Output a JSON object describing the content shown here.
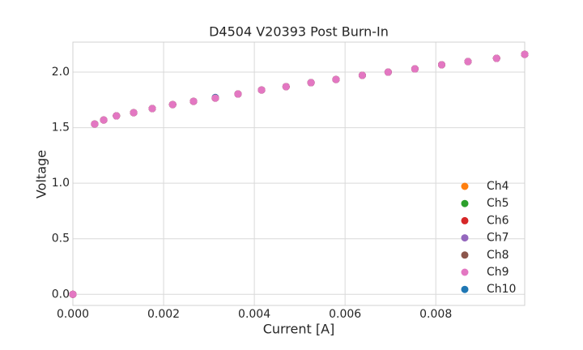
{
  "chart_data": {
    "type": "scatter",
    "title": "D4504 V20393 Post Burn-In",
    "x_label": "Current [A]",
    "y_label": "Voltage",
    "x": [
      0,
      0.00048,
      0.00068,
      0.00096,
      0.00134,
      0.00175,
      0.0022,
      0.00266,
      0.00314,
      0.00364,
      0.00416,
      0.0047,
      0.00525,
      0.0058,
      0.00638,
      0.00695,
      0.00754,
      0.00813,
      0.00871,
      0.00934,
      0.00996
    ],
    "series": [
      {
        "name": "Ch4",
        "color": "#ff7f0e",
        "values": [
          0,
          1.533,
          1.569,
          1.606,
          1.635,
          1.672,
          1.708,
          1.737,
          1.766,
          1.803,
          1.839,
          1.869,
          1.905,
          1.934,
          1.971,
          2.0,
          2.029,
          2.066,
          2.095,
          2.124,
          2.16
        ]
      },
      {
        "name": "Ch5",
        "color": "#2ca02c",
        "values": [
          0,
          1.533,
          1.569,
          1.606,
          1.635,
          1.672,
          1.708,
          1.737,
          1.766,
          1.803,
          1.839,
          1.869,
          1.905,
          1.934,
          1.971,
          2.0,
          2.029,
          2.066,
          2.095,
          2.124,
          2.16
        ]
      },
      {
        "name": "Ch6",
        "color": "#d62728",
        "values": [
          0,
          1.533,
          1.569,
          1.606,
          1.635,
          1.672,
          1.708,
          1.737,
          1.766,
          1.803,
          1.839,
          1.869,
          1.905,
          1.934,
          1.971,
          2.0,
          2.029,
          2.066,
          2.095,
          2.124,
          2.16
        ]
      },
      {
        "name": "Ch7",
        "color": "#9467bd",
        "values": [
          0,
          1.533,
          1.569,
          1.606,
          1.635,
          1.672,
          1.708,
          1.737,
          1.766,
          1.803,
          1.839,
          1.869,
          1.905,
          1.934,
          1.971,
          2.0,
          2.029,
          2.066,
          2.095,
          2.124,
          2.16
        ]
      },
      {
        "name": "Ch8",
        "color": "#8c564b",
        "values": [
          0,
          1.533,
          1.569,
          1.606,
          1.635,
          1.672,
          1.708,
          1.737,
          1.766,
          1.803,
          1.839,
          1.869,
          1.905,
          1.934,
          1.971,
          2.0,
          2.029,
          2.066,
          2.095,
          2.124,
          2.16
        ]
      },
      {
        "name": "Ch9",
        "color": "#e377c2",
        "values": [
          0,
          1.533,
          1.569,
          1.606,
          1.635,
          1.672,
          1.708,
          1.737,
          1.766,
          1.803,
          1.839,
          1.869,
          1.905,
          1.934,
          1.971,
          2.0,
          2.029,
          2.066,
          2.095,
          2.124,
          2.16
        ]
      },
      {
        "name": "Ch10",
        "color": "#1f77b4",
        "values": [
          0,
          1.533,
          1.569,
          1.606,
          1.635,
          1.672,
          1.708,
          1.737,
          1.772,
          1.803,
          1.839,
          1.869,
          1.905,
          1.934,
          1.971,
          2.0,
          2.029,
          2.066,
          2.095,
          2.124,
          2.16
        ]
      }
    ],
    "xlim": [
      0,
      0.00996
    ],
    "ylim": [
      -0.1,
      2.27
    ],
    "xticks": [
      {
        "value": 0,
        "label": "0.000"
      },
      {
        "value": 0.002,
        "label": "0.002"
      },
      {
        "value": 0.004,
        "label": "0.004"
      },
      {
        "value": 0.006,
        "label": "0.006"
      },
      {
        "value": 0.008,
        "label": "0.008"
      }
    ],
    "yticks": [
      {
        "value": 0,
        "label": "0.0"
      },
      {
        "value": 0.5,
        "label": "0.5"
      },
      {
        "value": 1,
        "label": "1.0"
      },
      {
        "value": 1.5,
        "label": "1.5"
      },
      {
        "value": 2,
        "label": "2.0"
      }
    ],
    "grid": true,
    "legend": "lower right"
  }
}
